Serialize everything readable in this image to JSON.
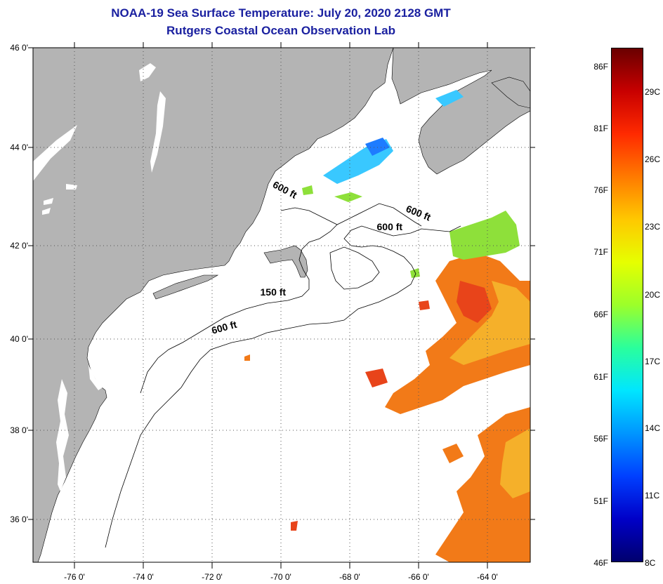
{
  "title": {
    "line1": "NOAA-19 Sea Surface Temperature:  July 20, 2020 2128 GMT",
    "line2": "Rutgers Coastal Ocean Observation Lab"
  },
  "map": {
    "lat_labels": [
      "46 0'",
      "44 0'",
      "42 0'",
      "40 0'",
      "38 0'",
      "36 0'"
    ],
    "lon_labels": [
      "-76 0'",
      "-74 0'",
      "-72 0'",
      "-70 0'",
      "-68 0'",
      "-66 0'",
      "-64 0'"
    ],
    "lon_range": [
      -77,
      -62.5
    ],
    "lat_range": [
      35,
      46
    ],
    "contour_labels": [
      {
        "text": "600 ft",
        "lon": -69.7,
        "lat": 42.9,
        "angle": 28
      },
      {
        "text": "600 ft",
        "lon": -65.8,
        "lat": 42.4,
        "angle": 22
      },
      {
        "text": "600 ft",
        "lon": -66.6,
        "lat": 42.1,
        "angle": 0
      },
      {
        "text": "150 ft",
        "lon": -70.0,
        "lat": 40.7,
        "angle": 0
      },
      {
        "text": "600 ft",
        "lon": -71.4,
        "lat": 39.95,
        "angle": -15
      }
    ]
  },
  "colorbar": {
    "fahrenheit_labels": [
      "86F",
      "81F",
      "76F",
      "71F",
      "66F",
      "61F",
      "56F",
      "51F",
      "46F"
    ],
    "celsius_labels": [
      "29C",
      "26C",
      "23C",
      "20C",
      "17C",
      "14C",
      "11C",
      "8C"
    ],
    "colors": [
      "#6a0000",
      "#c80000",
      "#ff2a00",
      "#ff7a00",
      "#ffc800",
      "#e6ff00",
      "#9cff2a",
      "#2aff9c",
      "#00e6ff",
      "#0096ff",
      "#0040ff",
      "#0000c8",
      "#00006e"
    ]
  },
  "colors": {
    "land": "#b4b4b4",
    "title": "#1a20a0",
    "warm": "#f27a18",
    "hot": "#e8441a",
    "mid": "#f5b02a",
    "cool": "#39c8ff",
    "green": "#8ee03a"
  }
}
